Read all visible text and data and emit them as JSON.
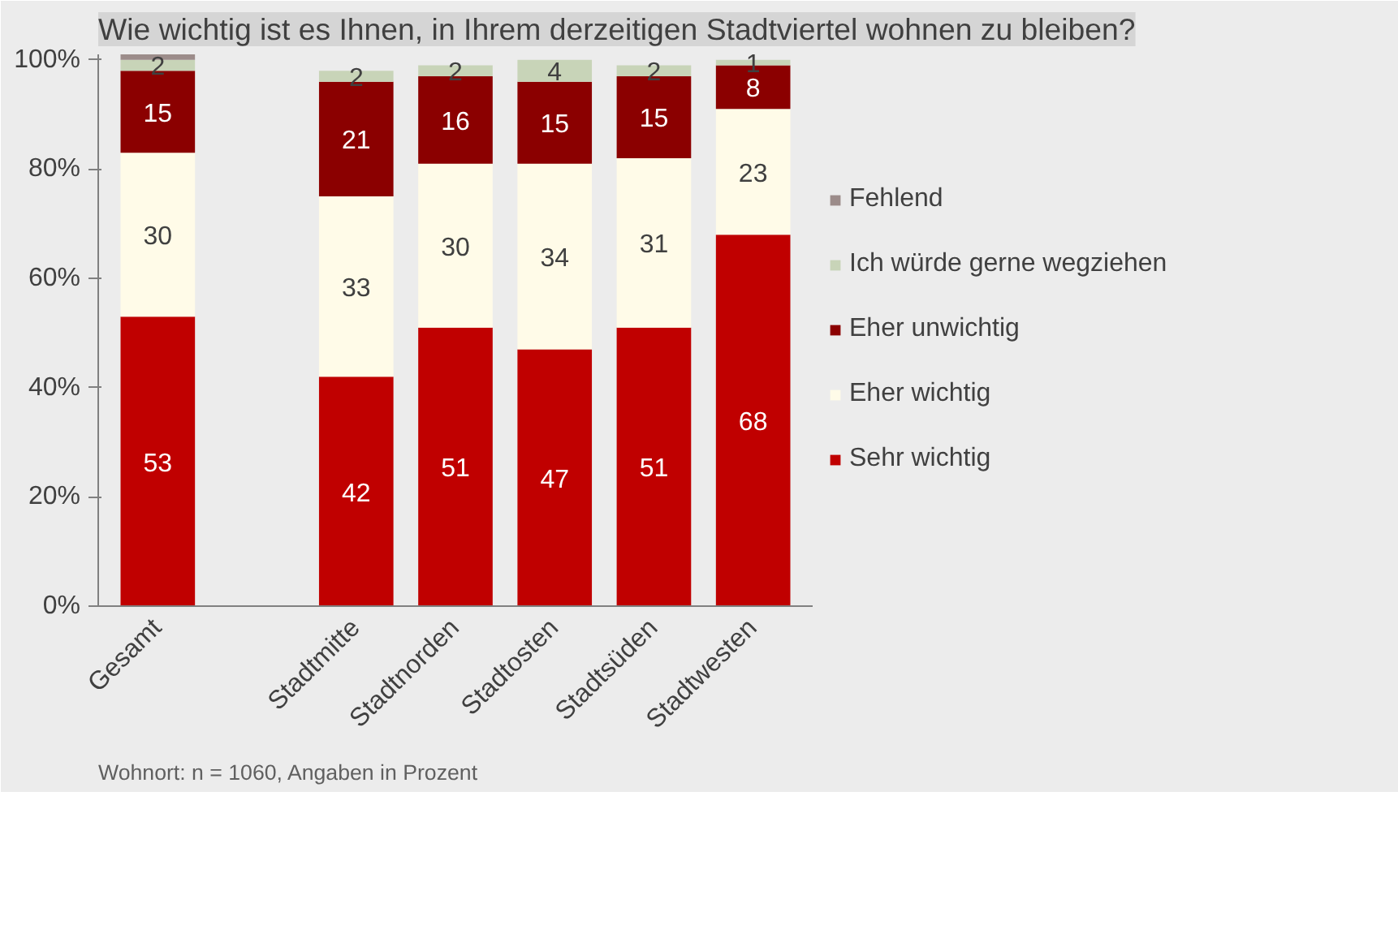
{
  "chart_data": {
    "type": "bar",
    "stacked": true,
    "title": "Wie wichtig ist es Ihnen, in Ihrem derzeitigen Stadtviertel wohnen zu bleiben?",
    "categories": [
      "Gesamt",
      null,
      "Stadtmitte",
      "Stadtnorden",
      "Stadtosten",
      "Stadtsüden",
      "Stadtwesten"
    ],
    "series": [
      {
        "name": "Sehr wichtig",
        "color": "#c00000",
        "values": [
          53,
          null,
          42,
          51,
          47,
          51,
          68
        ],
        "value_labels": [
          "53",
          null,
          "42",
          "51",
          "47",
          "51",
          "68"
        ]
      },
      {
        "name": "Eher wichtig",
        "color": "#fffbe8",
        "values": [
          30,
          null,
          33,
          30,
          34,
          31,
          23
        ],
        "value_labels": [
          "30",
          null,
          "33",
          "30",
          "34",
          "31",
          "23"
        ]
      },
      {
        "name": "Eher unwichtig",
        "color": "#8b0000",
        "values": [
          15,
          null,
          21,
          16,
          15,
          15,
          8
        ],
        "value_labels": [
          "15",
          null,
          "21",
          "16",
          "15",
          "15",
          "8"
        ]
      },
      {
        "name": "Ich würde gerne wegziehen",
        "color": "#c8d4b8",
        "values": [
          2,
          null,
          2,
          2,
          4,
          2,
          1
        ],
        "value_labels": [
          "2",
          null,
          "2",
          "2",
          "4",
          "2",
          "1"
        ]
      },
      {
        "name": "Fehlend",
        "color": "#9c8c8a",
        "values": [
          1,
          null,
          0,
          0,
          0,
          0,
          0
        ],
        "value_labels": [
          null,
          null,
          null,
          null,
          null,
          null,
          null
        ]
      }
    ],
    "ylim": [
      0,
      101
    ],
    "yticks": [
      {
        "value": 0,
        "label": "0%"
      },
      {
        "value": 20,
        "label": "20%"
      },
      {
        "value": 40,
        "label": "40%"
      },
      {
        "value": 60,
        "label": "60%"
      },
      {
        "value": 80,
        "label": "80%"
      },
      {
        "value": 100,
        "label": "100%"
      }
    ],
    "grid": false,
    "legend": "right",
    "annotations": [
      "Wohnort: n =  1060, Angaben in Prozent"
    ]
  }
}
